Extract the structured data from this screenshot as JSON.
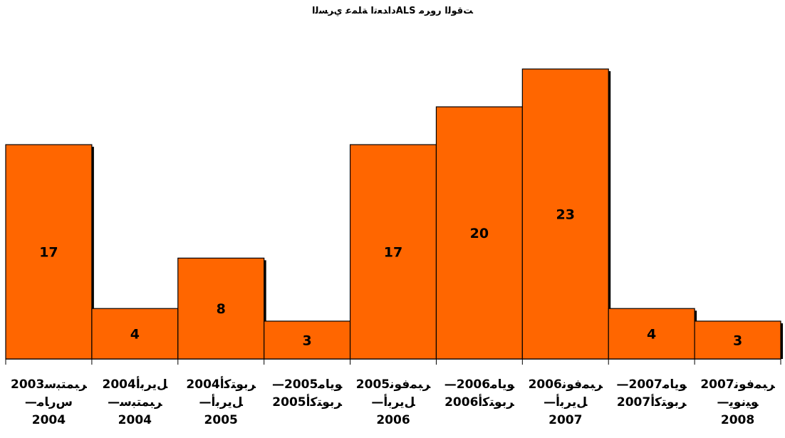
{
  "chart_data": {
    "type": "bar",
    "title": "ﺩﺍﺪﻌﺗﺍ ﺔﻠﻤﻋ ﻱﺮﺴﻟﺍALS ﺖﻗﻮﻟﺍ ﺭﻭﺮﻣ",
    "xlabel": "",
    "ylabel": "",
    "ylim": [
      0,
      25
    ],
    "grid": false,
    "legend": "none",
    "bar_color": "#ff6600",
    "shadow_color": "#000000",
    "categories": [
      [
        "ﺮﺒﻤﺘﺒﺳ2003",
        "—ﺱﺭﺎﻣ",
        "2004"
      ],
      [
        "ﻞﻳﺮﺑﺃ2004",
        "—ﺮﺒﻤﺘﺒﺳ",
        "2004"
      ],
      [
        "ﺮﺑﻮﺘﻛﺃ2004",
        "—ﻞﻳﺮﺑﺃ",
        "2005"
      ],
      [
        "—ﻮﻳﺎﻣ2005",
        "ﺮﺑﻮﺘﻛﺃ2005"
      ],
      [
        "ﺮﺒﻤﻓﻮﻧ2005",
        "—ﻞﻳﺮﺑﺃ",
        "2006"
      ],
      [
        "—ﻮﻳﺎﻣ2006",
        "ﺮﺑﻮﺘﻛﺃ2006"
      ],
      [
        "ﺮﺒﻤﻓﻮﻧ2006",
        "—ﻞﻳﺮﺑﺃ",
        "2007"
      ],
      [
        "—ﻮﻳﺎﻣ2007",
        "ﺮﺑﻮﺘﻛﺃ2007"
      ],
      [
        "ﺮﺒﻤﻓﻮﻧ2007",
        "—ﻮﻴﻧﻮﻳ",
        "2008"
      ]
    ],
    "values": [
      17,
      4,
      8,
      3,
      17,
      20,
      23,
      4,
      3
    ]
  }
}
